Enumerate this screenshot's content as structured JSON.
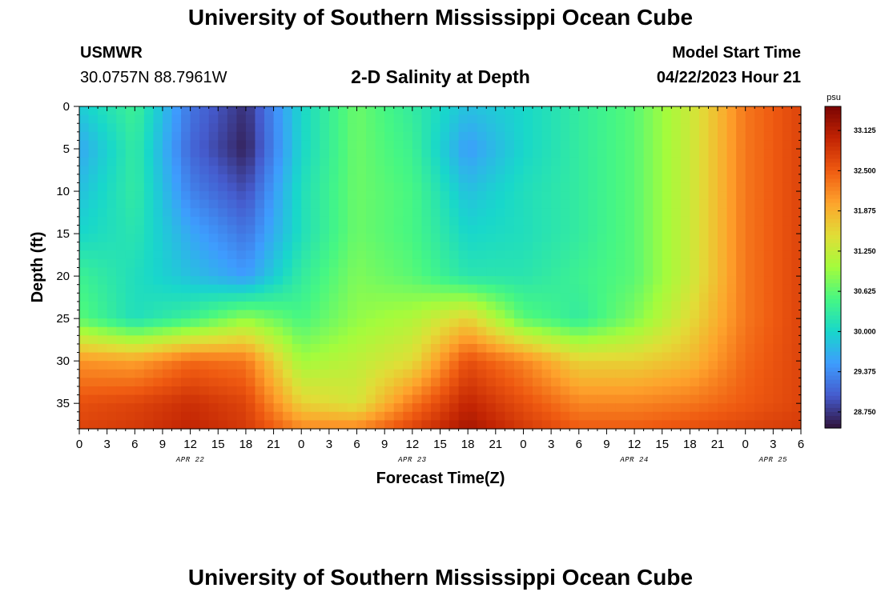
{
  "header": {
    "title": "University of Southern Mississippi Ocean Cube",
    "station_id": "USMWR",
    "station_coords": "30.0757N  88.7961W",
    "chart_title": "2-D Salinity at Depth",
    "model_label": "Model Start Time",
    "model_time": "04/22/2023 Hour 21"
  },
  "footer": {
    "title": "University of Southern Mississippi Ocean Cube"
  },
  "chart_data": {
    "type": "heatmap",
    "title": "2-D Salinity at Depth",
    "xlabel": "Forecast Time(Z)",
    "ylabel": "Depth (ft)",
    "x_unit": "forecast hour from 04/22 00Z",
    "xlim": [
      0,
      78
    ],
    "ylim": [
      0,
      38
    ],
    "y_inverted": true,
    "x_ticks": [
      0,
      3,
      6,
      9,
      12,
      15,
      18,
      21,
      24,
      27,
      30,
      33,
      36,
      39,
      42,
      45,
      48,
      51,
      54,
      57,
      60,
      63,
      66,
      69,
      72,
      75,
      78
    ],
    "x_tick_labels": [
      "0",
      "3",
      "6",
      "9",
      "12",
      "15",
      "18",
      "21",
      "0",
      "3",
      "6",
      "9",
      "12",
      "15",
      "18",
      "21",
      "0",
      "3",
      "6",
      "9",
      "12",
      "15",
      "18",
      "21",
      "0",
      "3",
      "6"
    ],
    "y_ticks": [
      0,
      5,
      10,
      15,
      20,
      25,
      30,
      35
    ],
    "y_tick_labels": [
      "0",
      "5",
      "10",
      "15",
      "20",
      "25",
      "30",
      "35"
    ],
    "date_labels": [
      {
        "text": "APR 22",
        "hour": 12
      },
      {
        "text": "APR 23",
        "hour": 36
      },
      {
        "text": "APR 24",
        "hour": 60
      },
      {
        "text": "APR 25",
        "hour": 75
      }
    ],
    "colorbar": {
      "unit": "psu",
      "min": 28.5,
      "max": 33.5,
      "ticks": [
        28.75,
        29.375,
        30.0,
        30.625,
        31.25,
        31.875,
        32.5,
        33.125
      ],
      "tick_labels": [
        "28.750",
        "29.375",
        "30.000",
        "30.625",
        "31.250",
        "31.875",
        "32.500",
        "33.125"
      ]
    },
    "grid_x": [
      0,
      6,
      12,
      18,
      24,
      30,
      36,
      42,
      48,
      54,
      60,
      66,
      72,
      78
    ],
    "grid_depth": [
      0,
      5,
      10,
      15,
      20,
      25,
      30,
      35,
      38
    ],
    "values": [
      [
        29.9,
        30.4,
        29.2,
        28.7,
        30.0,
        30.7,
        30.3,
        29.8,
        30.0,
        30.3,
        30.6,
        31.3,
        32.3,
        32.7
      ],
      [
        29.6,
        30.3,
        29.1,
        28.6,
        30.0,
        30.7,
        30.4,
        29.5,
        30.0,
        30.3,
        30.6,
        31.3,
        32.3,
        32.7
      ],
      [
        29.8,
        30.3,
        29.3,
        28.9,
        30.1,
        30.7,
        30.5,
        29.8,
        30.1,
        30.3,
        30.6,
        31.3,
        32.3,
        32.7
      ],
      [
        30.0,
        30.2,
        29.6,
        29.2,
        30.1,
        30.7,
        30.5,
        30.0,
        30.1,
        30.3,
        30.6,
        31.3,
        32.3,
        32.7
      ],
      [
        30.4,
        30.1,
        29.8,
        29.5,
        30.3,
        30.8,
        30.6,
        30.2,
        30.2,
        30.4,
        30.6,
        31.3,
        32.3,
        32.7
      ],
      [
        30.6,
        30.1,
        30.4,
        30.9,
        30.5,
        30.9,
        31.1,
        31.6,
        30.6,
        30.3,
        30.8,
        31.5,
        32.3,
        32.7
      ],
      [
        32.1,
        32.0,
        32.4,
        32.3,
        31.0,
        31.2,
        31.5,
        32.6,
        32.2,
        31.6,
        31.6,
        31.8,
        32.4,
        32.7
      ],
      [
        32.6,
        32.7,
        32.9,
        32.7,
        31.6,
        31.4,
        32.3,
        33.0,
        32.6,
        32.2,
        32.2,
        32.3,
        32.5,
        32.7
      ],
      [
        32.7,
        32.8,
        33.0,
        32.8,
        32.2,
        32.2,
        32.7,
        33.2,
        32.8,
        32.5,
        32.5,
        32.6,
        32.7,
        32.8
      ]
    ]
  }
}
